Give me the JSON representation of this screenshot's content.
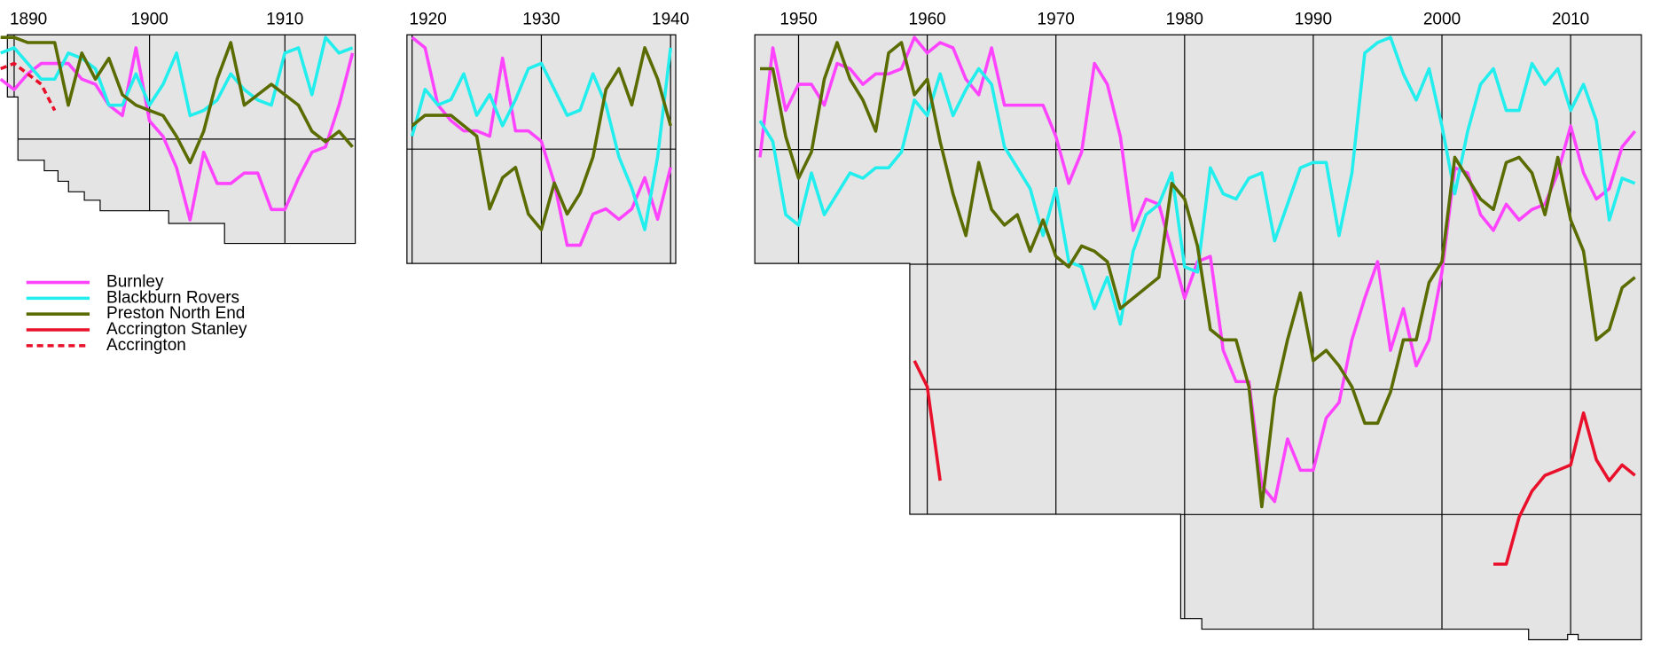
{
  "chart_data": [
    {
      "type": "line",
      "xlim": [
        1889.5,
        1915.2
      ],
      "ylim": [
        40.5,
        0.5
      ],
      "xticks": [
        1890,
        1900,
        1910
      ],
      "yticks": [
        20.5
      ],
      "grid": true,
      "x": [
        1889,
        1890,
        1891,
        1892,
        1893,
        1894,
        1895,
        1896,
        1897,
        1898,
        1899,
        1900,
        1901,
        1902,
        1903,
        1904,
        1905,
        1906,
        1907,
        1908,
        1909,
        1910,
        1911,
        1912,
        1913,
        1914,
        1915
      ],
      "series": [
        {
          "name": "Burnley",
          "color": "#ff44ff",
          "values": [
            9,
            11,
            8,
            6,
            6,
            6,
            9,
            10,
            14,
            16,
            3,
            17,
            20,
            26,
            36,
            23,
            29,
            29,
            27,
            27,
            34,
            34,
            28,
            23,
            22,
            14,
            4
          ]
        },
        {
          "name": "Blackburn Rovers",
          "color": "#22eeee",
          "values": [
            4,
            3,
            6,
            9,
            9,
            4,
            5,
            7,
            14,
            14,
            8,
            14,
            10,
            4,
            16,
            15,
            13,
            8,
            11,
            13,
            14,
            4,
            3,
            12,
            1,
            4,
            3
          ]
        },
        {
          "name": "Preston North End",
          "color": "#5a6b00",
          "values": [
            1,
            1,
            2,
            2,
            2,
            14,
            4,
            9,
            5,
            12,
            14,
            15,
            16,
            20,
            25,
            19,
            9,
            2,
            14,
            12,
            10,
            12,
            14,
            19,
            21,
            19,
            22
          ]
        },
        {
          "name": "Accrington",
          "color": "#e8102a",
          "line_style": "dashed",
          "x": [
            1889,
            1890,
            1891,
            1892,
            1893
          ],
          "values": [
            7,
            6,
            8,
            10,
            15
          ]
        }
      ]
    },
    {
      "type": "line",
      "xlim": [
        1919.6,
        1940.4
      ],
      "ylim": [
        44.5,
        0.5
      ],
      "xticks": [
        1920,
        1930,
        1940
      ],
      "yticks": [
        22.5
      ],
      "grid": true,
      "x": [
        1920,
        1921,
        1922,
        1923,
        1924,
        1925,
        1926,
        1927,
        1928,
        1929,
        1930,
        1931,
        1932,
        1933,
        1934,
        1935,
        1936,
        1937,
        1938,
        1939,
        1940
      ],
      "series": [
        {
          "name": "Burnley",
          "color": "#ff44ff",
          "values": [
            1,
            3,
            14,
            17,
            19,
            19,
            20,
            5,
            19,
            19,
            21,
            29,
            41,
            41,
            35,
            34,
            36,
            34,
            28,
            36,
            26
          ]
        },
        {
          "name": "Blackburn Rovers",
          "color": "#22eeee",
          "values": [
            20,
            11,
            14,
            13,
            8,
            16,
            12,
            18,
            13,
            7,
            6,
            11,
            16,
            15,
            8,
            14,
            24,
            30,
            38,
            24,
            3
          ]
        },
        {
          "name": "Preston North End",
          "color": "#5a6b00",
          "values": [
            18,
            16,
            16,
            16,
            18,
            20,
            34,
            28,
            26,
            35,
            38,
            29,
            35,
            31,
            24,
            11,
            7,
            14,
            3,
            9,
            18
          ]
        }
      ]
    },
    {
      "type": "line",
      "xlim": [
        1946.6,
        2015.5
      ],
      "ylim": [
        116.5,
        0.5
      ],
      "xticks": [
        1950,
        1960,
        1970,
        1980,
        1990,
        2000,
        2010
      ],
      "yticks": [
        22.5,
        44.5,
        68.5,
        92.5
      ],
      "grid": true,
      "x": [
        1947,
        1948,
        1949,
        1950,
        1951,
        1952,
        1953,
        1954,
        1955,
        1956,
        1957,
        1958,
        1959,
        1960,
        1961,
        1962,
        1963,
        1964,
        1965,
        1966,
        1967,
        1968,
        1969,
        1970,
        1971,
        1972,
        1973,
        1974,
        1975,
        1976,
        1977,
        1978,
        1979,
        1980,
        1981,
        1982,
        1983,
        1984,
        1985,
        1986,
        1987,
        1988,
        1989,
        1990,
        1991,
        1992,
        1993,
        1994,
        1995,
        1996,
        1997,
        1998,
        1999,
        2000,
        2001,
        2002,
        2003,
        2004,
        2005,
        2006,
        2007,
        2008,
        2009,
        2010,
        2011,
        2012,
        2013,
        2014,
        2015
      ],
      "series": [
        {
          "name": "Burnley",
          "color": "#ff44ff",
          "values": [
            24,
            3,
            15,
            10,
            10,
            14,
            6,
            7,
            10,
            8,
            8,
            7,
            1,
            4,
            2,
            3,
            9,
            12,
            3,
            14,
            14,
            14,
            14,
            20,
            29,
            23,
            6,
            10,
            20,
            38,
            32,
            33,
            42,
            51,
            44,
            43,
            61,
            67,
            67,
            87,
            90,
            78,
            84,
            84,
            74,
            71,
            59,
            51,
            44,
            61,
            53,
            64,
            59,
            46,
            26,
            27,
            35,
            38,
            33,
            36,
            34,
            33,
            27,
            18,
            27,
            32,
            30,
            22,
            19
          ]
        },
        {
          "name": "Blackburn Rovers",
          "color": "#22eeee",
          "values": [
            17,
            21,
            35,
            37,
            27,
            35,
            31,
            27,
            28,
            26,
            26,
            23,
            13,
            16,
            8,
            16,
            11,
            7,
            10,
            22,
            26,
            30,
            39,
            30,
            44,
            45,
            53,
            47,
            56,
            42,
            35,
            33,
            27,
            45,
            46,
            26,
            31,
            32,
            28,
            27,
            40,
            33,
            26,
            25,
            25,
            39,
            27,
            4,
            2,
            1,
            8,
            13,
            7,
            18,
            31,
            19,
            10,
            7,
            15,
            15,
            6,
            10,
            7,
            15,
            10,
            17,
            36,
            28,
            29
          ]
        },
        {
          "name": "Preston North End",
          "color": "#5a6b00",
          "values": [
            7,
            7,
            20,
            28,
            23,
            9,
            2,
            9,
            13,
            19,
            4,
            2,
            12,
            9,
            21,
            31,
            39,
            25,
            34,
            37,
            35,
            42,
            36,
            43,
            45,
            41,
            42,
            44,
            53,
            51,
            49,
            47,
            29,
            32,
            41,
            57,
            59,
            59,
            68,
            91,
            70,
            59,
            50,
            63,
            61,
            64,
            68,
            75,
            75,
            69,
            59,
            59,
            48,
            44,
            24,
            28,
            32,
            34,
            25,
            24,
            27,
            35,
            24,
            36,
            42,
            59,
            57,
            49,
            47
          ]
        },
        {
          "name": "Accrington Stanley",
          "color": "#e8102a",
          "x": [
            1959,
            1960,
            1961,
            1962,
            2004,
            2005,
            2006,
            2007,
            2008,
            2009,
            2010,
            2011,
            2012,
            2013,
            2014,
            2015
          ],
          "values": [
            63,
            68,
            86,
            null,
            102,
            102,
            93,
            88,
            85,
            84,
            83,
            73,
            82,
            86,
            83,
            85
          ]
        }
      ]
    }
  ]
}
